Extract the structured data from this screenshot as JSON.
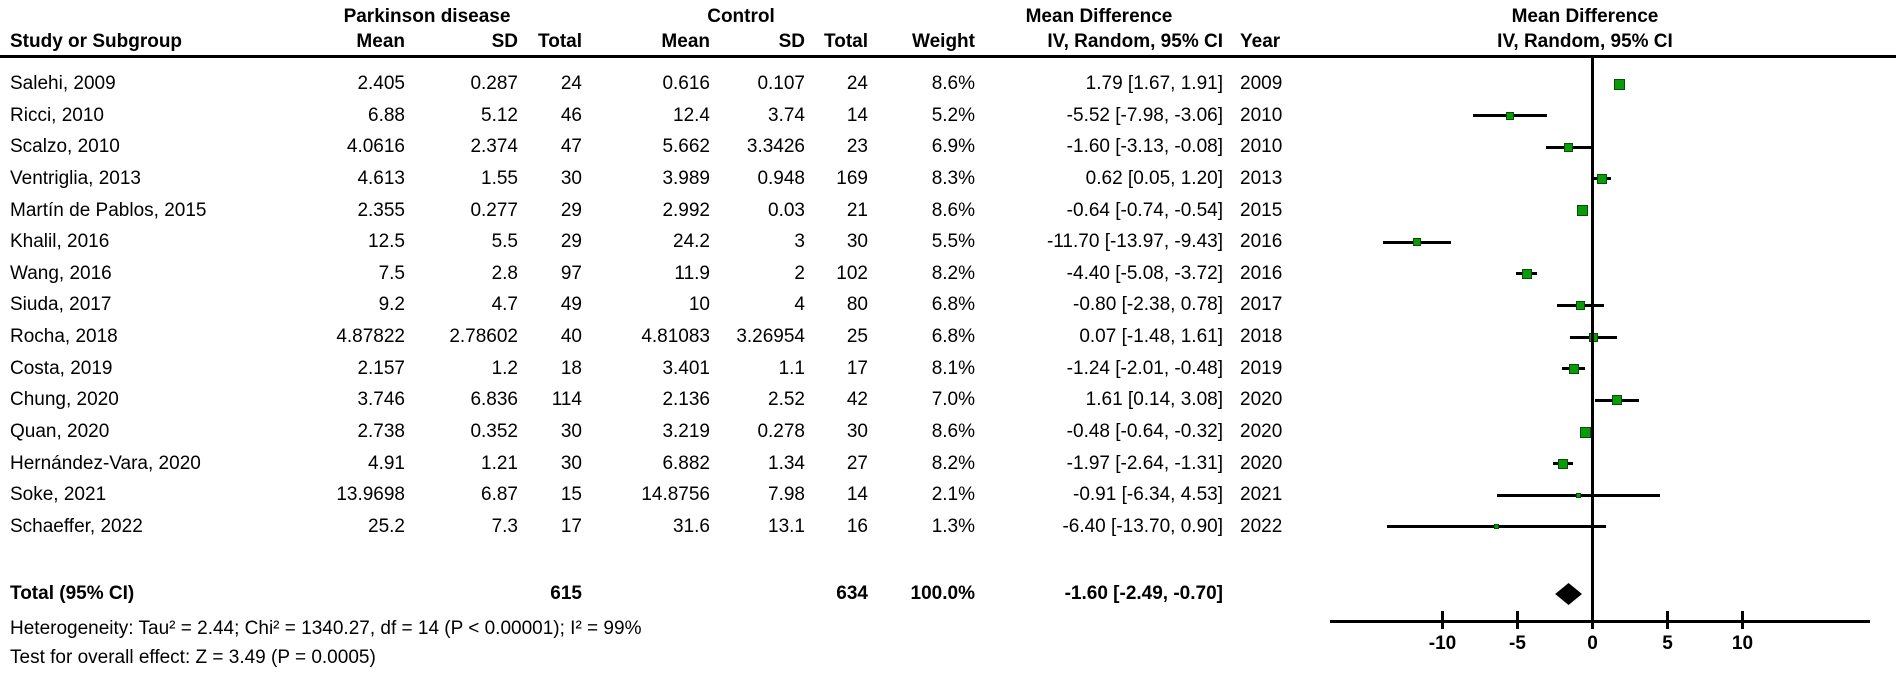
{
  "header": {
    "group_parkinson": "Parkinson disease",
    "group_control": "Control",
    "md_column_title": "Mean Difference",
    "md_column_subtitle": "IV, Random, 95% CI",
    "plot_title": "Mean Difference",
    "plot_subtitle": "IV, Random, 95% CI",
    "col_study": "Study or Subgroup",
    "col_mean": "Mean",
    "col_sd": "SD",
    "col_total": "Total",
    "col_weight": "Weight",
    "col_year": "Year"
  },
  "colors": {
    "square_fill": "#0a9a0a",
    "square_border": "#045004",
    "line": "#000000",
    "background": "#ffffff"
  },
  "chart_data": {
    "type": "forest",
    "title": "Mean Difference IV, Random, 95% CI",
    "axis": {
      "ticks": [
        -10,
        -5,
        0,
        5,
        10
      ],
      "zero_line": 0,
      "xmin": -17.5,
      "xmax": 18.5,
      "axis_label_row": [
        "-10",
        "-5",
        "0",
        "5",
        "10"
      ]
    },
    "studies": [
      {
        "study": "Salehi, 2009",
        "pd_mean": "2.405",
        "pd_sd": "0.287",
        "pd_total": "24",
        "c_mean": "0.616",
        "c_sd": "0.107",
        "c_total": "24",
        "weight": "8.6%",
        "ci_label": "1.79 [1.67, 1.91]",
        "year": "2009",
        "md": 1.79,
        "lo": 1.67,
        "hi": 1.91,
        "w": 8.6
      },
      {
        "study": "Ricci, 2010",
        "pd_mean": "6.88",
        "pd_sd": "5.12",
        "pd_total": "46",
        "c_mean": "12.4",
        "c_sd": "3.74",
        "c_total": "14",
        "weight": "5.2%",
        "ci_label": "-5.52 [-7.98, -3.06]",
        "year": "2010",
        "md": -5.52,
        "lo": -7.98,
        "hi": -3.06,
        "w": 5.2
      },
      {
        "study": "Scalzo, 2010",
        "pd_mean": "4.0616",
        "pd_sd": "2.374",
        "pd_total": "47",
        "c_mean": "5.662",
        "c_sd": "3.3426",
        "c_total": "23",
        "weight": "6.9%",
        "ci_label": "-1.60 [-3.13, -0.08]",
        "year": "2010",
        "md": -1.6,
        "lo": -3.13,
        "hi": -0.08,
        "w": 6.9
      },
      {
        "study": "Ventriglia, 2013",
        "pd_mean": "4.613",
        "pd_sd": "1.55",
        "pd_total": "30",
        "c_mean": "3.989",
        "c_sd": "0.948",
        "c_total": "169",
        "weight": "8.3%",
        "ci_label": "0.62 [0.05, 1.20]",
        "year": "2013",
        "md": 0.62,
        "lo": 0.05,
        "hi": 1.2,
        "w": 8.3
      },
      {
        "study": "Martín de Pablos, 2015",
        "pd_mean": "2.355",
        "pd_sd": "0.277",
        "pd_total": "29",
        "c_mean": "2.992",
        "c_sd": "0.03",
        "c_total": "21",
        "weight": "8.6%",
        "ci_label": "-0.64 [-0.74, -0.54]",
        "year": "2015",
        "md": -0.64,
        "lo": -0.74,
        "hi": -0.54,
        "w": 8.6
      },
      {
        "study": "Khalil, 2016",
        "pd_mean": "12.5",
        "pd_sd": "5.5",
        "pd_total": "29",
        "c_mean": "24.2",
        "c_sd": "3",
        "c_total": "30",
        "weight": "5.5%",
        "ci_label": "-11.70 [-13.97, -9.43]",
        "year": "2016",
        "md": -11.7,
        "lo": -13.97,
        "hi": -9.43,
        "w": 5.5
      },
      {
        "study": "Wang, 2016",
        "pd_mean": "7.5",
        "pd_sd": "2.8",
        "pd_total": "97",
        "c_mean": "11.9",
        "c_sd": "2",
        "c_total": "102",
        "weight": "8.2%",
        "ci_label": "-4.40 [-5.08, -3.72]",
        "year": "2016",
        "md": -4.4,
        "lo": -5.08,
        "hi": -3.72,
        "w": 8.2
      },
      {
        "study": "Siuda, 2017",
        "pd_mean": "9.2",
        "pd_sd": "4.7",
        "pd_total": "49",
        "c_mean": "10",
        "c_sd": "4",
        "c_total": "80",
        "weight": "6.8%",
        "ci_label": "-0.80 [-2.38, 0.78]",
        "year": "2017",
        "md": -0.8,
        "lo": -2.38,
        "hi": 0.78,
        "w": 6.8
      },
      {
        "study": "Rocha, 2018",
        "pd_mean": "4.87822",
        "pd_sd": "2.78602",
        "pd_total": "40",
        "c_mean": "4.81083",
        "c_sd": "3.26954",
        "c_total": "25",
        "weight": "6.8%",
        "ci_label": "0.07 [-1.48, 1.61]",
        "year": "2018",
        "md": 0.07,
        "lo": -1.48,
        "hi": 1.61,
        "w": 6.8
      },
      {
        "study": "Costa, 2019",
        "pd_mean": "2.157",
        "pd_sd": "1.2",
        "pd_total": "18",
        "c_mean": "3.401",
        "c_sd": "1.1",
        "c_total": "17",
        "weight": "8.1%",
        "ci_label": "-1.24 [-2.01, -0.48]",
        "year": "2019",
        "md": -1.24,
        "lo": -2.01,
        "hi": -0.48,
        "w": 8.1
      },
      {
        "study": "Chung, 2020",
        "pd_mean": "3.746",
        "pd_sd": "6.836",
        "pd_total": "114",
        "c_mean": "2.136",
        "c_sd": "2.52",
        "c_total": "42",
        "weight": "7.0%",
        "ci_label": "1.61 [0.14, 3.08]",
        "year": "2020",
        "md": 1.61,
        "lo": 0.14,
        "hi": 3.08,
        "w": 7.0
      },
      {
        "study": "Quan, 2020",
        "pd_mean": "2.738",
        "pd_sd": "0.352",
        "pd_total": "30",
        "c_mean": "3.219",
        "c_sd": "0.278",
        "c_total": "30",
        "weight": "8.6%",
        "ci_label": "-0.48 [-0.64, -0.32]",
        "year": "2020",
        "md": -0.48,
        "lo": -0.64,
        "hi": -0.32,
        "w": 8.6
      },
      {
        "study": "Hernández-Vara, 2020",
        "pd_mean": "4.91",
        "pd_sd": "1.21",
        "pd_total": "30",
        "c_mean": "6.882",
        "c_sd": "1.34",
        "c_total": "27",
        "weight": "8.2%",
        "ci_label": "-1.97 [-2.64, -1.31]",
        "year": "2020",
        "md": -1.97,
        "lo": -2.64,
        "hi": -1.31,
        "w": 8.2
      },
      {
        "study": "Soke, 2021",
        "pd_mean": "13.9698",
        "pd_sd": "6.87",
        "pd_total": "15",
        "c_mean": "14.8756",
        "c_sd": "7.98",
        "c_total": "14",
        "weight": "2.1%",
        "ci_label": "-0.91 [-6.34, 4.53]",
        "year": "2021",
        "md": -0.91,
        "lo": -6.34,
        "hi": 4.53,
        "w": 2.1
      },
      {
        "study": "Schaeffer, 2022",
        "pd_mean": "25.2",
        "pd_sd": "7.3",
        "pd_total": "17",
        "c_mean": "31.6",
        "c_sd": "13.1",
        "c_total": "16",
        "weight": "1.3%",
        "ci_label": "-6.40 [-13.70, 0.90]",
        "year": "2022",
        "md": -6.4,
        "lo": -13.7,
        "hi": 0.9,
        "w": 1.3
      }
    ],
    "total": {
      "label": "Total (95% CI)",
      "pd_total": "615",
      "c_total": "634",
      "weight": "100.0%",
      "ci_label": "-1.60 [-2.49, -0.70]",
      "md": -1.6,
      "lo": -2.49,
      "hi": -0.7
    },
    "heterogeneity": "Heterogeneity: Tau² = 2.44; Chi² = 1340.27, df = 14 (P < 0.00001); I² = 99%",
    "overall_effect": "Test for overall effect: Z = 3.49 (P = 0.0005)"
  }
}
